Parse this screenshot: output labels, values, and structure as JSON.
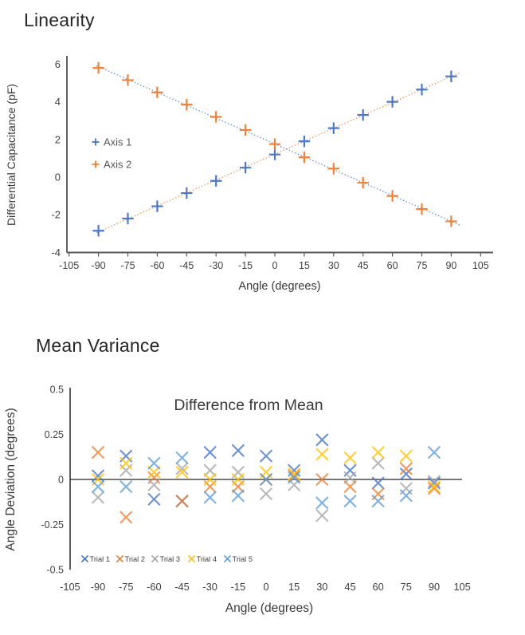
{
  "page_background": "#ffffff",
  "linearity": {
    "heading": "Linearity"
  },
  "mean_variance": {
    "heading": "Mean Variance"
  },
  "palette": {
    "blue": "#4472C4",
    "orange": "#ED7D31",
    "gray": "#A5A5A5",
    "yellow": "#FFC000",
    "light_blue": "#5B9BD5",
    "axis": "#595959",
    "axis_dark": "#262626",
    "tick_text": "#404040",
    "title_text": "#3A3A3A",
    "legend_text": "#595959"
  },
  "chart_data": [
    {
      "id": "linearity",
      "type": "scatter",
      "title": "",
      "xlabel": "Angle (degrees)",
      "ylabel": "Differential Capacitance (pF)",
      "xlim": [
        -105,
        105
      ],
      "ylim": [
        -4,
        6
      ],
      "xticks": [
        -105,
        -90,
        -75,
        -60,
        -45,
        -30,
        -15,
        0,
        15,
        30,
        45,
        60,
        75,
        90,
        105
      ],
      "yticks": [
        6,
        4,
        2,
        0,
        -2,
        -4
      ],
      "grid": false,
      "legend_position": "inside-left",
      "x": [
        -90,
        -75,
        -60,
        -45,
        -30,
        -15,
        0,
        15,
        30,
        45,
        60,
        75,
        90
      ],
      "series": [
        {
          "name": "Axis 1",
          "marker": "plus",
          "color": "#4472C4",
          "trendline": true,
          "trendline_style": "dotted",
          "trendline_color": "#ED7D31",
          "values": [
            -2.85,
            -2.2,
            -1.55,
            -0.85,
            -0.2,
            0.5,
            1.2,
            1.9,
            2.6,
            3.3,
            4.0,
            4.65,
            5.35
          ]
        },
        {
          "name": "Axis 2",
          "marker": "plus",
          "color": "#ED7D31",
          "trendline": true,
          "trendline_style": "dotted",
          "trendline_color": "#4472C4",
          "values": [
            5.8,
            5.15,
            4.5,
            3.85,
            3.2,
            2.5,
            1.75,
            1.05,
            0.45,
            -0.3,
            -1.0,
            -1.7,
            -2.35
          ]
        }
      ]
    },
    {
      "id": "mean-variance",
      "type": "scatter",
      "title": "Difference from Mean",
      "xlabel": "Angle (degrees)",
      "ylabel": "Angle Deviation (degrees)",
      "xlim": [
        -105,
        105
      ],
      "ylim": [
        -0.5,
        0.5
      ],
      "xticks": [
        -105,
        -90,
        -75,
        -60,
        -45,
        -30,
        -15,
        0,
        15,
        30,
        45,
        60,
        75,
        90,
        105
      ],
      "yticks": [
        0.5,
        0.25,
        0,
        -0.25,
        -0.5
      ],
      "grid": false,
      "zero_line": true,
      "legend_position": "bottom-inside",
      "x": [
        -90,
        -75,
        -60,
        -45,
        -30,
        -15,
        0,
        15,
        30,
        45,
        60,
        75,
        90
      ],
      "series": [
        {
          "name": "Trial 1",
          "marker": "x",
          "color": "#4472C4",
          "values": [
            0.02,
            0.13,
            -0.11,
            -0.12,
            0.15,
            0.16,
            0.13,
            0.05,
            0.22,
            0.05,
            -0.02,
            0.03,
            -0.02
          ]
        },
        {
          "name": "Trial 2",
          "marker": "x",
          "color": "#ED7D31",
          "values": [
            0.15,
            -0.21,
            0.01,
            -0.12,
            -0.04,
            -0.04,
            0.0,
            0.02,
            0.0,
            -0.04,
            -0.08,
            0.06,
            -0.05
          ]
        },
        {
          "name": "Trial 3",
          "marker": "x",
          "color": "#A5A5A5",
          "values": [
            -0.1,
            0.05,
            -0.03,
            0.06,
            0.05,
            0.04,
            -0.08,
            -0.03,
            -0.2,
            0.01,
            0.09,
            -0.05,
            -0.01
          ]
        },
        {
          "name": "Trial 4",
          "marker": "x",
          "color": "#FFC000",
          "values": [
            0.0,
            0.09,
            0.04,
            0.04,
            0.0,
            0.0,
            0.04,
            0.03,
            0.14,
            0.12,
            0.15,
            0.13,
            -0.04
          ]
        },
        {
          "name": "Trial 5",
          "marker": "x",
          "color": "#5B9BD5",
          "values": [
            -0.04,
            -0.04,
            0.09,
            0.12,
            -0.1,
            -0.09,
            0.0,
            0.01,
            -0.13,
            -0.12,
            -0.12,
            -0.09,
            0.15
          ]
        }
      ]
    }
  ]
}
